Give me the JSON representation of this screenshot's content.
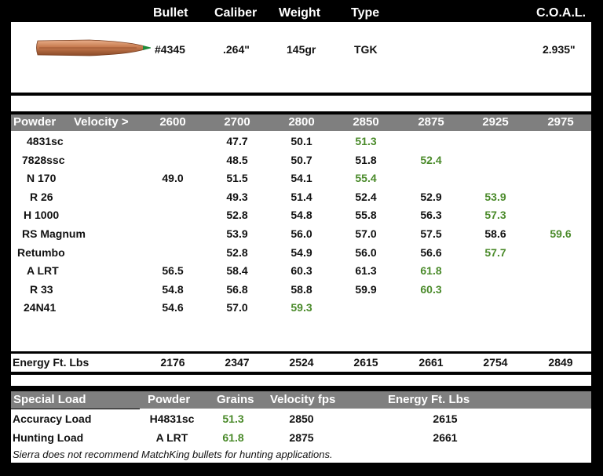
{
  "header": {
    "bullet": "Bullet",
    "caliber": "Caliber",
    "weight": "Weight",
    "type": "Type",
    "coal": "C.O.A.L."
  },
  "bullet_spec": {
    "number": "#4345",
    "caliber": ".264\"",
    "weight": "145gr",
    "type": "TGK",
    "coal": "2.935\""
  },
  "velocity_table": {
    "powder_header": "Powder",
    "velocity_header": "Velocity >",
    "velocities": [
      "2600",
      "2700",
      "2800",
      "2850",
      "2875",
      "2925",
      "2975"
    ],
    "rows": [
      {
        "powder": "4831sc",
        "values": [
          "",
          "47.7",
          "50.1",
          "51.3",
          "",
          "",
          ""
        ]
      },
      {
        "powder": "7828ssc",
        "values": [
          "",
          "48.5",
          "50.7",
          "51.8",
          "52.4",
          "",
          ""
        ]
      },
      {
        "powder": "N 170",
        "values": [
          "49.0",
          "51.5",
          "54.1",
          "55.4",
          "",
          "",
          ""
        ]
      },
      {
        "powder": "R 26",
        "values": [
          "",
          "49.3",
          "51.4",
          "52.4",
          "52.9",
          "53.9",
          ""
        ]
      },
      {
        "powder": "H 1000",
        "values": [
          "",
          "52.8",
          "54.8",
          "55.8",
          "56.3",
          "57.3",
          ""
        ]
      },
      {
        "powder": "RS Magnum",
        "values": [
          "",
          "53.9",
          "56.0",
          "57.0",
          "57.5",
          "58.6",
          "59.6"
        ]
      },
      {
        "powder": "Retumbo",
        "values": [
          "",
          "52.8",
          "54.9",
          "56.0",
          "56.6",
          "57.7",
          ""
        ]
      },
      {
        "powder": "A LRT",
        "values": [
          "56.5",
          "58.4",
          "60.3",
          "61.3",
          "61.8",
          "",
          ""
        ]
      },
      {
        "powder": "R 33",
        "values": [
          "54.8",
          "56.8",
          "58.8",
          "59.9",
          "60.3",
          "",
          ""
        ]
      },
      {
        "powder": "24N41",
        "values": [
          "54.6",
          "57.0",
          "59.3",
          "",
          "",
          "",
          ""
        ]
      }
    ]
  },
  "energy": {
    "label": "Energy Ft. Lbs",
    "values": [
      "2176",
      "2347",
      "2524",
      "2615",
      "2661",
      "2754",
      "2849"
    ]
  },
  "special_loads": {
    "headers": [
      "Special Load",
      "Powder",
      "Grains",
      "Velocity fps",
      "Energy Ft. Lbs"
    ],
    "rows": [
      {
        "name": "Accuracy Load",
        "powder": "H4831sc",
        "grains": "51.3",
        "velocity": "2850",
        "energy": "2615"
      },
      {
        "name": "Hunting Load",
        "powder": "A LRT",
        "grains": "61.8",
        "velocity": "2875",
        "energy": "2661"
      }
    ]
  },
  "footnote": "Sierra does not recommend MatchKing bullets for hunting applications.",
  "colors": {
    "background": "#000000",
    "header_bar": "#7f7f7f",
    "highlight_green": "#4a8a2a",
    "bullet_copper": "#c77a4e",
    "bullet_tip": "#1e8a3a"
  },
  "icons": {
    "bullet": "bullet-image"
  }
}
